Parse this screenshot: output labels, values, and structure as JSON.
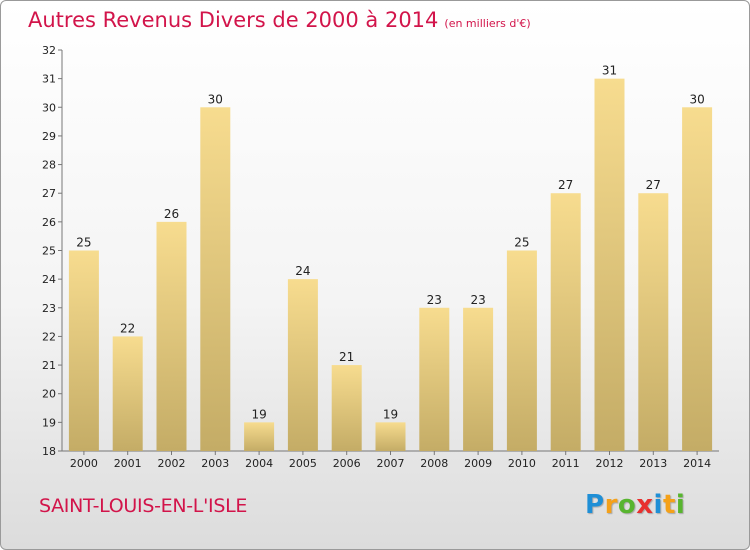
{
  "title": "Autres Revenus Divers de 2000 à 2014",
  "subtitle": "(en milliers d'€)",
  "town": "SAINT-LOUIS-EN-L'ISLE",
  "logo": {
    "letters": [
      "P",
      "r",
      "o",
      "x",
      "i",
      "t",
      "i"
    ],
    "colors": [
      "#1f8fd6",
      "#f4a11a",
      "#58b52f",
      "#e8302e",
      "#1f8fd6",
      "#f4a11a",
      "#58b52f"
    ]
  },
  "colors": {
    "title": "#d2144a",
    "bar_light": "#f7dc8f",
    "bar_dark": "#c4ac66"
  },
  "chart_data": {
    "type": "bar",
    "categories": [
      "2000",
      "2001",
      "2002",
      "2003",
      "2004",
      "2005",
      "2006",
      "2007",
      "2008",
      "2009",
      "2010",
      "2011",
      "2012",
      "2013",
      "2014"
    ],
    "values": [
      25,
      22,
      26,
      30,
      19,
      24,
      21,
      19,
      23,
      23,
      25,
      27,
      31,
      27,
      30
    ],
    "ylim": [
      18,
      32
    ],
    "yticks": [
      18,
      19,
      20,
      21,
      22,
      23,
      24,
      25,
      26,
      27,
      28,
      29,
      30,
      31,
      32
    ],
    "grid": false,
    "legend": "none"
  }
}
